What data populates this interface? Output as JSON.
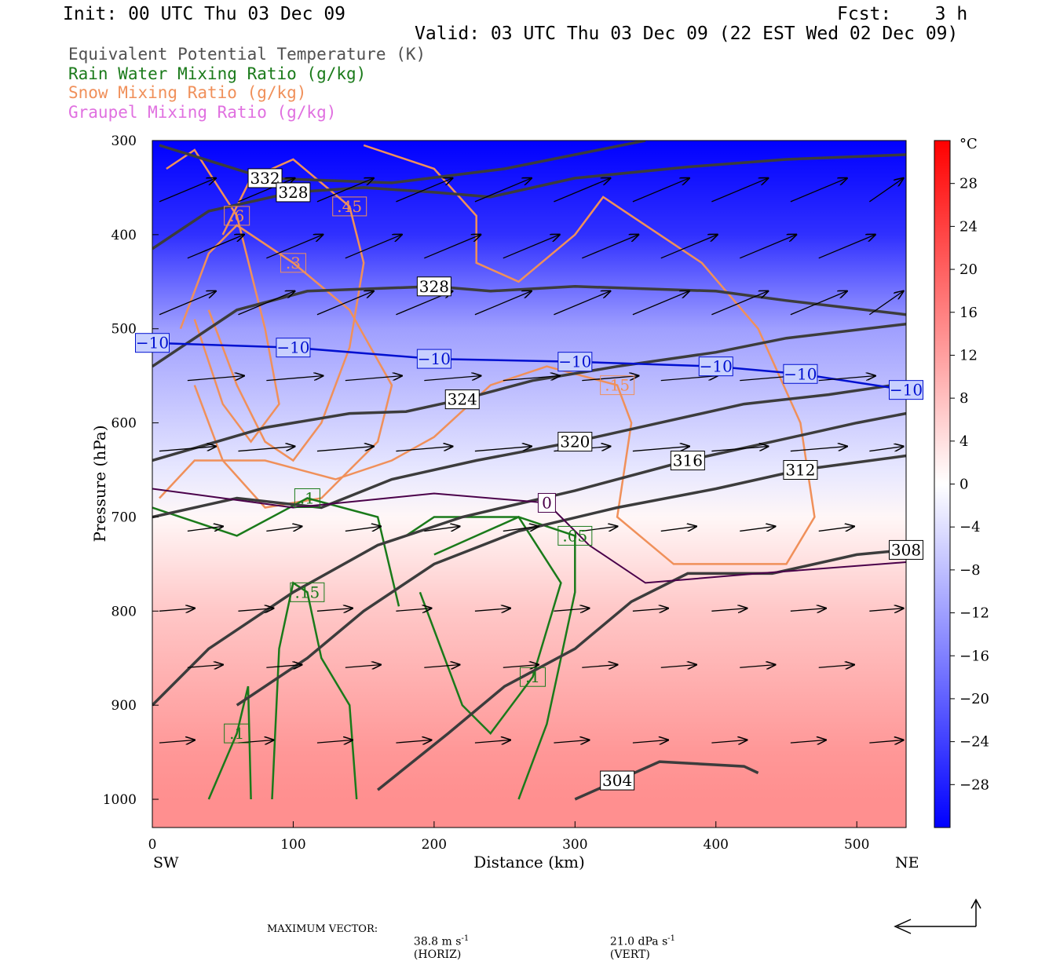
{
  "header": {
    "init": "Init: 00 UTC Thu 03 Dec 09",
    "fcst": "Fcst:    3 h",
    "valid": "Valid: 03 UTC Thu 03 Dec 09 (22 EST Wed 02 Dec 09)"
  },
  "legend": [
    {
      "label": "Equivalent Potential Temperature (K)",
      "color": "#505050"
    },
    {
      "label": "Rain Water Mixing Ratio (g/kg)",
      "color": "#1a7a1a"
    },
    {
      "label": "Snow Mixing Ratio (g/kg)",
      "color": "#f0905a"
    },
    {
      "label": "Graupel Mixing Ratio (g/kg)",
      "color": "#e070e0"
    }
  ],
  "footer": {
    "max_vector_label": "MAXIMUM VECTOR:",
    "horiz": "38.8 m s",
    "horiz_unit": "-1",
    "horiz_tag": "(HORIZ)",
    "vert": "21.0 dPa s",
    "vert_unit": "-1",
    "vert_tag": "(VERT)"
  },
  "chart_data": {
    "type": "cross-section",
    "ylabel": "Pressure (hPa)",
    "xlabel": "Distance (km)",
    "left_end_label": "SW",
    "right_end_label": "NE",
    "xlim": [
      0,
      535
    ],
    "ylim": [
      1030,
      300
    ],
    "x_ticks": [
      0,
      100,
      200,
      300,
      400,
      500
    ],
    "y_ticks": [
      300,
      400,
      500,
      600,
      700,
      800,
      900,
      1000
    ],
    "colorbar": {
      "unit": "°C",
      "ticks": [
        "28",
        "24",
        "20",
        "16",
        "12",
        "8",
        "4",
        "0",
        "−4",
        "−8",
        "−12",
        "−16",
        "−20",
        "−24",
        "−28"
      ],
      "range": [
        -32,
        32
      ]
    },
    "temperature_field": {
      "levels_hPa": [
        300,
        400,
        500,
        600,
        650,
        700,
        750,
        800,
        850,
        900,
        950,
        1000,
        1030
      ],
      "temp_C": [
        -34,
        -26,
        -12,
        -6,
        -3,
        1,
        4,
        7,
        9,
        11,
        13,
        14,
        14
      ]
    },
    "theta_e_contours": [
      {
        "label": "332",
        "points": [
          [
            5,
            305
          ],
          [
            80,
            340
          ],
          [
            170,
            345
          ],
          [
            250,
            330
          ],
          [
            350,
            300
          ]
        ]
      },
      {
        "label": "328",
        "points": [
          [
            0,
            415
          ],
          [
            40,
            375
          ],
          [
            100,
            355
          ],
          [
            150,
            350
          ],
          [
            200,
            355
          ],
          [
            240,
            360
          ],
          [
            300,
            340
          ],
          [
            380,
            328
          ],
          [
            450,
            320
          ],
          [
            535,
            315
          ]
        ]
      },
      {
        "label": "328",
        "points": [
          [
            0,
            540
          ],
          [
            60,
            480
          ],
          [
            110,
            460
          ],
          [
            200,
            455
          ],
          [
            240,
            460
          ],
          [
            300,
            455
          ],
          [
            400,
            460
          ],
          [
            450,
            470
          ],
          [
            535,
            485
          ]
        ]
      },
      {
        "label": "324",
        "points": [
          [
            0,
            640
          ],
          [
            80,
            605
          ],
          [
            140,
            590
          ],
          [
            180,
            588
          ],
          [
            220,
            575
          ],
          [
            270,
            555
          ],
          [
            330,
            540
          ],
          [
            400,
            525
          ],
          [
            450,
            510
          ],
          [
            535,
            495
          ]
        ]
      },
      {
        "label": "320",
        "points": [
          [
            0,
            700
          ],
          [
            60,
            680
          ],
          [
            120,
            690
          ],
          [
            170,
            660
          ],
          [
            230,
            640
          ],
          [
            300,
            620
          ],
          [
            360,
            600
          ],
          [
            420,
            580
          ],
          [
            480,
            570
          ],
          [
            535,
            558
          ]
        ]
      },
      {
        "label": "316",
        "points": [
          [
            0,
            900
          ],
          [
            40,
            840
          ],
          [
            100,
            780
          ],
          [
            160,
            730
          ],
          [
            220,
            700
          ],
          [
            300,
            672
          ],
          [
            380,
            640
          ],
          [
            440,
            620
          ],
          [
            500,
            600
          ],
          [
            535,
            590
          ]
        ]
      },
      {
        "label": "312",
        "points": [
          [
            60,
            900
          ],
          [
            110,
            850
          ],
          [
            150,
            800
          ],
          [
            200,
            750
          ],
          [
            260,
            715
          ],
          [
            330,
            690
          ],
          [
            400,
            670
          ],
          [
            460,
            650
          ],
          [
            535,
            635
          ]
        ]
      },
      {
        "label": "308",
        "points": [
          [
            160,
            990
          ],
          [
            210,
            930
          ],
          [
            250,
            880
          ],
          [
            300,
            840
          ],
          [
            340,
            790
          ],
          [
            380,
            760
          ],
          [
            440,
            760
          ],
          [
            500,
            740
          ],
          [
            535,
            735
          ]
        ]
      },
      {
        "label": "304",
        "points": [
          [
            300,
            1000
          ],
          [
            330,
            980
          ],
          [
            360,
            960
          ],
          [
            420,
            965
          ],
          [
            430,
            972
          ]
        ]
      }
    ],
    "temp_0C_line": {
      "label": "0",
      "points": [
        [
          0,
          670
        ],
        [
          100,
          690
        ],
        [
          200,
          675
        ],
        [
          280,
          685
        ],
        [
          310,
          730
        ],
        [
          350,
          770
        ],
        [
          430,
          760
        ],
        [
          535,
          748
        ]
      ]
    },
    "temp_minus10C_line": {
      "label": "−10",
      "points": [
        [
          0,
          515
        ],
        [
          100,
          520
        ],
        [
          200,
          532
        ],
        [
          300,
          535
        ],
        [
          400,
          540
        ],
        [
          460,
          548
        ],
        [
          535,
          565
        ]
      ]
    },
    "rain_contours": [
      {
        "label": ".1",
        "points": [
          [
            0,
            690
          ],
          [
            60,
            720
          ],
          [
            110,
            680
          ],
          [
            160,
            700
          ],
          [
            175,
            795
          ]
        ]
      },
      {
        "label": ".1",
        "points": [
          [
            200,
            740
          ],
          [
            230,
            720
          ],
          [
            260,
            700
          ],
          [
            290,
            770
          ],
          [
            270,
            870
          ],
          [
            240,
            930
          ],
          [
            220,
            900
          ],
          [
            200,
            820
          ],
          [
            190,
            780
          ]
        ]
      },
      {
        "label": ".05",
        "points": [
          [
            260,
            1000
          ],
          [
            280,
            920
          ],
          [
            290,
            850
          ],
          [
            300,
            780
          ],
          [
            300,
            720
          ],
          [
            260,
            700
          ],
          [
            200,
            700
          ],
          [
            180,
            720
          ]
        ]
      },
      {
        "label": ".15",
        "points": [
          [
            145,
            1000
          ],
          [
            140,
            900
          ],
          [
            120,
            850
          ],
          [
            110,
            780
          ],
          [
            100,
            770
          ],
          [
            90,
            840
          ],
          [
            85,
            1000
          ]
        ]
      },
      {
        "label": ".1",
        "points": [
          [
            70,
            1000
          ],
          [
            68,
            880
          ],
          [
            60,
            930
          ],
          [
            40,
            1000
          ]
        ]
      }
    ],
    "snow_contours": [
      {
        "label": ".15",
        "points": [
          [
            5,
            680
          ],
          [
            30,
            640
          ],
          [
            80,
            640
          ],
          [
            130,
            660
          ],
          [
            170,
            640
          ],
          [
            200,
            615
          ],
          [
            240,
            560
          ],
          [
            280,
            540
          ],
          [
            330,
            560
          ],
          [
            340,
            600
          ],
          [
            330,
            700
          ],
          [
            370,
            750
          ],
          [
            450,
            750
          ],
          [
            470,
            700
          ],
          [
            460,
            600
          ],
          [
            430,
            500
          ],
          [
            390,
            430
          ],
          [
            340,
            380
          ],
          [
            320,
            360
          ],
          [
            300,
            400
          ],
          [
            260,
            450
          ],
          [
            230,
            430
          ],
          [
            230,
            380
          ],
          [
            200,
            330
          ],
          [
            150,
            305
          ]
        ]
      },
      {
        "label": ".3",
        "points": [
          [
            20,
            500
          ],
          [
            40,
            420
          ],
          [
            60,
            390
          ],
          [
            100,
            430
          ],
          [
            140,
            480
          ],
          [
            170,
            560
          ],
          [
            160,
            620
          ],
          [
            120,
            680
          ],
          [
            80,
            690
          ],
          [
            50,
            640
          ],
          [
            30,
            560
          ]
        ]
      },
      {
        "label": ".45",
        "points": [
          [
            50,
            400
          ],
          [
            70,
            340
          ],
          [
            100,
            320
          ],
          [
            140,
            370
          ],
          [
            150,
            430
          ],
          [
            140,
            520
          ],
          [
            120,
            600
          ],
          [
            100,
            640
          ],
          [
            80,
            620
          ],
          [
            60,
            560
          ],
          [
            40,
            480
          ]
        ]
      },
      {
        "label": ".6",
        "points": [
          [
            10,
            330
          ],
          [
            30,
            310
          ],
          [
            60,
            380
          ],
          [
            80,
            500
          ],
          [
            90,
            580
          ],
          [
            70,
            620
          ],
          [
            50,
            580
          ],
          [
            30,
            490
          ]
        ]
      }
    ],
    "vector_rows_hPa": [
      365,
      425,
      485,
      555,
      630,
      715,
      800,
      860,
      940
    ]
  }
}
